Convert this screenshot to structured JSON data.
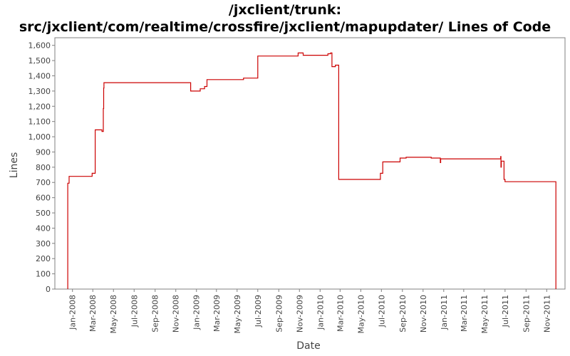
{
  "chart_data": {
    "type": "line",
    "title_lines": [
      "/jxclient/trunk:",
      "src/jxclient/com/realtime/crossfire/jxclient/mapupdater/ Lines of Code"
    ],
    "xlabel": "Date",
    "ylabel": "Lines",
    "ylim": [
      0,
      1650
    ],
    "yticks": [
      0,
      100,
      200,
      300,
      400,
      500,
      600,
      700,
      800,
      900,
      1000,
      1100,
      1200,
      1300,
      1400,
      1500,
      1600
    ],
    "xlim": [
      "2007-11-10",
      "2011-12-25"
    ],
    "xticks": [
      {
        "date": "2008-01-01",
        "label": "Jan-2008"
      },
      {
        "date": "2008-03-01",
        "label": "Mar-2008"
      },
      {
        "date": "2008-05-01",
        "label": "May-2008"
      },
      {
        "date": "2008-07-01",
        "label": "Jul-2008"
      },
      {
        "date": "2008-09-01",
        "label": "Sep-2008"
      },
      {
        "date": "2008-11-01",
        "label": "Nov-2008"
      },
      {
        "date": "2009-01-01",
        "label": "Jan-2009"
      },
      {
        "date": "2009-03-01",
        "label": "Mar-2009"
      },
      {
        "date": "2009-05-01",
        "label": "May-2009"
      },
      {
        "date": "2009-07-01",
        "label": "Jul-2009"
      },
      {
        "date": "2009-09-01",
        "label": "Sep-2009"
      },
      {
        "date": "2009-11-01",
        "label": "Nov-2009"
      },
      {
        "date": "2010-01-01",
        "label": "Jan-2010"
      },
      {
        "date": "2010-03-01",
        "label": "Mar-2010"
      },
      {
        "date": "2010-05-01",
        "label": "May-2010"
      },
      {
        "date": "2010-07-01",
        "label": "Jul-2010"
      },
      {
        "date": "2010-09-01",
        "label": "Sep-2010"
      },
      {
        "date": "2010-11-01",
        "label": "Nov-2010"
      },
      {
        "date": "2011-01-01",
        "label": "Jan-2011"
      },
      {
        "date": "2011-03-01",
        "label": "Mar-2011"
      },
      {
        "date": "2011-05-01",
        "label": "May-2011"
      },
      {
        "date": "2011-07-01",
        "label": "Jul-2011"
      },
      {
        "date": "2011-09-01",
        "label": "Sep-2011"
      },
      {
        "date": "2011-11-01",
        "label": "Nov-2011"
      }
    ],
    "grid": false,
    "line_color": "#cc0000",
    "step": "post",
    "series": [
      {
        "points": [
          [
            "2007-12-18",
            0
          ],
          [
            "2007-12-18",
            695
          ],
          [
            "2007-12-22",
            695
          ],
          [
            "2007-12-22",
            740
          ],
          [
            "2008-02-28",
            740
          ],
          [
            "2008-02-28",
            760
          ],
          [
            "2008-03-08",
            760
          ],
          [
            "2008-03-08",
            1045
          ],
          [
            "2008-03-28",
            1045
          ],
          [
            "2008-03-28",
            1035
          ],
          [
            "2008-04-01",
            1035
          ],
          [
            "2008-04-01",
            1185
          ],
          [
            "2008-04-02",
            1185
          ],
          [
            "2008-04-02",
            1320
          ],
          [
            "2008-04-03",
            1320
          ],
          [
            "2008-04-03",
            1355
          ],
          [
            "2008-12-15",
            1355
          ],
          [
            "2008-12-15",
            1300
          ],
          [
            "2009-01-12",
            1300
          ],
          [
            "2009-01-12",
            1315
          ],
          [
            "2009-01-25",
            1315
          ],
          [
            "2009-01-25",
            1330
          ],
          [
            "2009-02-01",
            1330
          ],
          [
            "2009-02-01",
            1375
          ],
          [
            "2009-05-20",
            1375
          ],
          [
            "2009-05-20",
            1385
          ],
          [
            "2009-07-01",
            1385
          ],
          [
            "2009-07-01",
            1530
          ],
          [
            "2009-10-28",
            1530
          ],
          [
            "2009-10-28",
            1550
          ],
          [
            "2009-11-12",
            1550
          ],
          [
            "2009-11-12",
            1535
          ],
          [
            "2010-01-24",
            1535
          ],
          [
            "2010-01-24",
            1545
          ],
          [
            "2010-02-01",
            1545
          ],
          [
            "2010-02-01",
            1550
          ],
          [
            "2010-02-05",
            1550
          ],
          [
            "2010-02-05",
            1460
          ],
          [
            "2010-02-15",
            1460
          ],
          [
            "2010-02-15",
            1470
          ],
          [
            "2010-02-25",
            1470
          ],
          [
            "2010-02-25",
            720
          ],
          [
            "2010-06-28",
            720
          ],
          [
            "2010-06-28",
            760
          ],
          [
            "2010-07-05",
            760
          ],
          [
            "2010-07-05",
            835
          ],
          [
            "2010-08-25",
            835
          ],
          [
            "2010-08-25",
            860
          ],
          [
            "2010-09-12",
            860
          ],
          [
            "2010-09-12",
            865
          ],
          [
            "2010-11-25",
            865
          ],
          [
            "2010-11-25",
            860
          ],
          [
            "2010-12-22",
            860
          ],
          [
            "2010-12-22",
            830
          ],
          [
            "2010-12-23",
            830
          ],
          [
            "2010-12-23",
            855
          ],
          [
            "2011-06-18",
            855
          ],
          [
            "2011-06-18",
            870
          ],
          [
            "2011-06-19",
            870
          ],
          [
            "2011-06-19",
            800
          ],
          [
            "2011-06-20",
            800
          ],
          [
            "2011-06-20",
            840
          ],
          [
            "2011-06-28",
            840
          ],
          [
            "2011-06-28",
            720
          ],
          [
            "2011-07-01",
            720
          ],
          [
            "2011-07-01",
            705
          ],
          [
            "2011-11-28",
            705
          ],
          [
            "2011-11-28",
            0
          ]
        ]
      }
    ]
  }
}
